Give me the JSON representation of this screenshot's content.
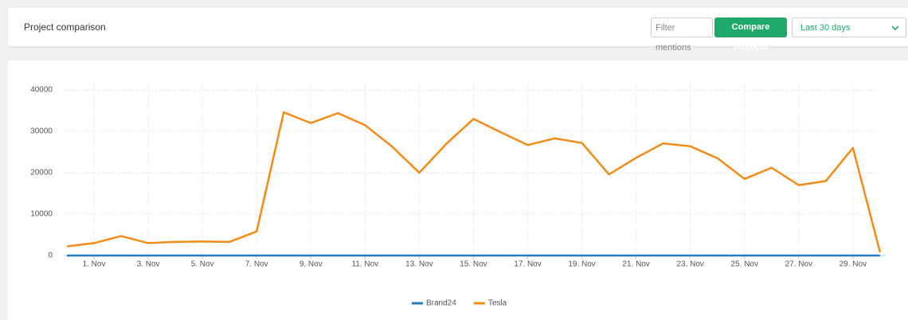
{
  "header": {
    "title": "Project comparison",
    "filter_button": "Filter mentions",
    "compare_button": "Compare projects",
    "range_select": "Last 30 days"
  },
  "chart_data": {
    "type": "line",
    "categories": [
      null,
      "1. Nov",
      null,
      "3. Nov",
      null,
      "5. Nov",
      null,
      "7. Nov",
      null,
      "9. Nov",
      null,
      "11. Nov",
      null,
      "13. Nov",
      null,
      "15. Nov",
      null,
      "17. Nov",
      null,
      "19. Nov",
      null,
      "21. Nov",
      null,
      "23. Nov",
      null,
      "25. Nov",
      null,
      "27. Nov",
      null,
      "29. Nov",
      null
    ],
    "series": [
      {
        "name": "Brand24",
        "color": "#1f7ec2",
        "values": [
          0,
          0,
          0,
          0,
          0,
          0,
          0,
          0,
          0,
          0,
          0,
          0,
          0,
          0,
          0,
          0,
          0,
          0,
          0,
          0,
          0,
          0,
          0,
          0,
          0,
          0,
          0,
          0,
          0,
          0,
          0
        ]
      },
      {
        "name": "Tesla",
        "color": "#f28b17",
        "values": [
          2200,
          3000,
          4700,
          3000,
          3300,
          3400,
          3300,
          5800,
          34600,
          32000,
          34400,
          31500,
          26300,
          20000,
          27000,
          33000,
          29800,
          26700,
          28300,
          27200,
          19600,
          23600,
          27100,
          26400,
          23500,
          18500,
          21200,
          17000,
          18000,
          26000,
          800
        ]
      }
    ],
    "ylim": [
      0,
      40000
    ],
    "yticks": [
      0,
      10000,
      20000,
      30000,
      40000
    ],
    "grid": true
  }
}
